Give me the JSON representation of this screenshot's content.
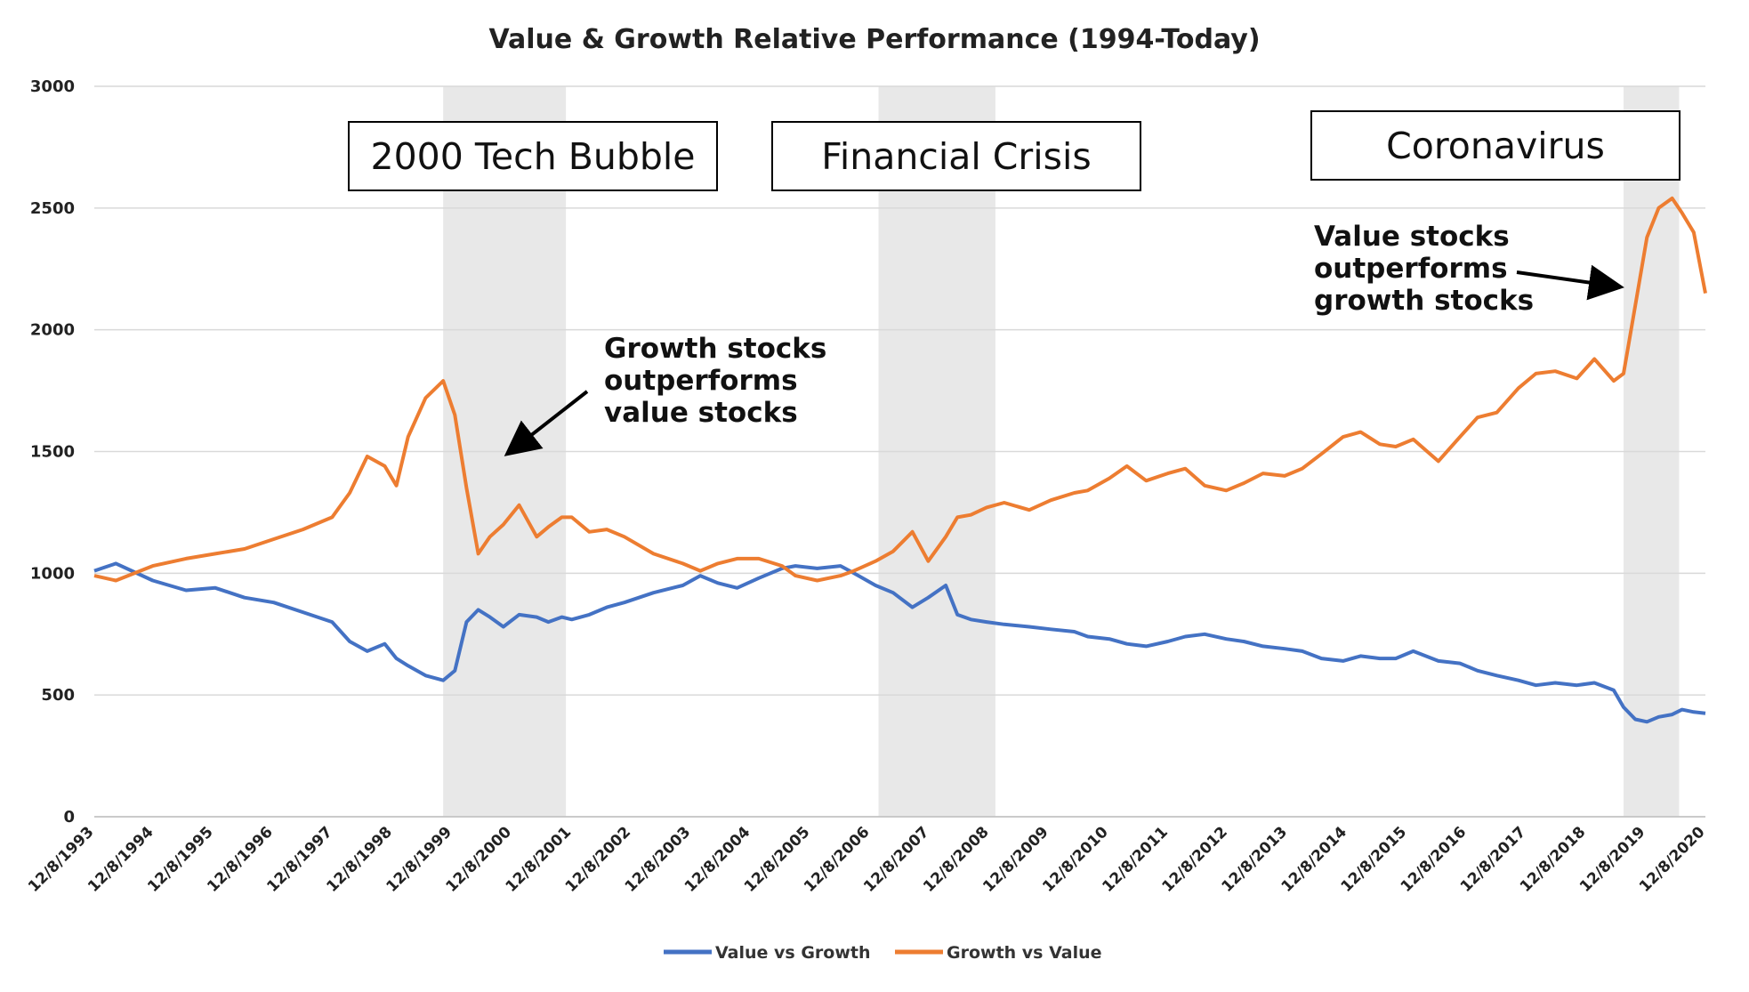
{
  "chart_data": {
    "type": "line",
    "title": "Value & Growth Relative Performance (1994-Today)",
    "xlabel": "",
    "ylabel": "",
    "ylim": [
      0,
      3000
    ],
    "yticks": [
      "0",
      "500",
      "1000",
      "1500",
      "2000",
      "2500",
      "3000"
    ],
    "grid": true,
    "legend_position": "bottom-center",
    "x_tick_labels": [
      "12/8/1993",
      "12/8/1994",
      "12/8/1995",
      "12/8/1996",
      "12/8/1997",
      "12/8/1998",
      "12/8/1999",
      "12/8/2000",
      "12/8/2001",
      "12/8/2002",
      "12/8/2003",
      "12/8/2004",
      "12/8/2005",
      "12/8/2006",
      "12/8/2007",
      "12/8/2008",
      "12/8/2009",
      "12/8/2010",
      "12/8/2011",
      "12/8/2012",
      "12/8/2013",
      "12/8/2014",
      "12/8/2015",
      "12/8/2016",
      "12/8/2017",
      "12/8/2018",
      "12/8/2019",
      "12/8/2020"
    ],
    "x_range": [
      1993.93,
      2021.5
    ],
    "x": [
      1993.93,
      1994.3,
      1994.93,
      1995.5,
      1996.0,
      1996.5,
      1997.0,
      1997.5,
      1998.0,
      1998.3,
      1998.6,
      1998.9,
      1999.1,
      1999.3,
      1999.6,
      1999.9,
      2000.1,
      2000.3,
      2000.5,
      2000.7,
      2000.93,
      2001.2,
      2001.5,
      2001.7,
      2001.93,
      2002.1,
      2002.4,
      2002.7,
      2003.0,
      2003.5,
      2004.0,
      2004.3,
      2004.6,
      2004.93,
      2005.3,
      2005.7,
      2005.93,
      2006.3,
      2006.7,
      2006.93,
      2007.3,
      2007.6,
      2007.93,
      2008.2,
      2008.5,
      2008.7,
      2008.93,
      2009.2,
      2009.5,
      2009.93,
      2010.3,
      2010.7,
      2010.93,
      2011.3,
      2011.6,
      2011.93,
      2012.3,
      2012.6,
      2012.93,
      2013.3,
      2013.6,
      2013.93,
      2014.3,
      2014.6,
      2014.93,
      2015.3,
      2015.6,
      2015.93,
      2016.2,
      2016.5,
      2016.93,
      2017.3,
      2017.6,
      2017.93,
      2018.3,
      2018.6,
      2018.93,
      2019.3,
      2019.6,
      2019.93,
      2020.1,
      2020.3,
      2020.5,
      2020.7,
      2020.93,
      2021.1,
      2021.3,
      2021.5
    ],
    "series": [
      {
        "name": "Value vs Growth",
        "color": "#4472C4",
        "values": [
          1010,
          1040,
          970,
          930,
          940,
          900,
          880,
          840,
          800,
          720,
          680,
          710,
          650,
          620,
          580,
          560,
          600,
          800,
          850,
          820,
          780,
          830,
          820,
          800,
          820,
          810,
          830,
          860,
          880,
          920,
          950,
          990,
          960,
          940,
          980,
          1020,
          1030,
          1020,
          1030,
          1000,
          950,
          920,
          860,
          900,
          950,
          830,
          810,
          800,
          790,
          780,
          770,
          760,
          740,
          730,
          710,
          700,
          720,
          740,
          750,
          730,
          720,
          700,
          690,
          680,
          650,
          640,
          660,
          650,
          650,
          680,
          640,
          630,
          600,
          580,
          560,
          540,
          550,
          540,
          550,
          520,
          450,
          400,
          390,
          410,
          420,
          440,
          430,
          425
        ]
      },
      {
        "name": "Growth vs Value",
        "color": "#ED7D31",
        "values": [
          990,
          970,
          1030,
          1060,
          1080,
          1100,
          1140,
          1180,
          1230,
          1330,
          1480,
          1440,
          1360,
          1560,
          1720,
          1790,
          1650,
          1350,
          1080,
          1150,
          1200,
          1280,
          1150,
          1190,
          1230,
          1230,
          1170,
          1180,
          1150,
          1080,
          1040,
          1010,
          1040,
          1060,
          1060,
          1030,
          990,
          970,
          990,
          1010,
          1050,
          1090,
          1170,
          1050,
          1150,
          1230,
          1240,
          1270,
          1290,
          1260,
          1300,
          1330,
          1340,
          1390,
          1440,
          1380,
          1410,
          1430,
          1360,
          1340,
          1370,
          1410,
          1400,
          1430,
          1490,
          1560,
          1580,
          1530,
          1520,
          1550,
          1460,
          1560,
          1640,
          1660,
          1760,
          1820,
          1830,
          1800,
          1880,
          1790,
          1820,
          2100,
          2380,
          2500,
          2540,
          2480,
          2400,
          2150
        ]
      }
    ],
    "shaded_periods": [
      {
        "start": 1999.9,
        "end": 2002.0
      },
      {
        "start": 2007.35,
        "end": 2009.35
      },
      {
        "start": 2020.1,
        "end": 2021.05
      }
    ],
    "annotations": {
      "boxes": [
        "2000 Tech Bubble",
        "Financial Crisis",
        "Coronavirus"
      ],
      "callout_growth": [
        "Growth stocks",
        "outperforms",
        "value stocks"
      ],
      "callout_value": [
        "Value stocks",
        "outperforms",
        "growth stocks"
      ]
    }
  }
}
